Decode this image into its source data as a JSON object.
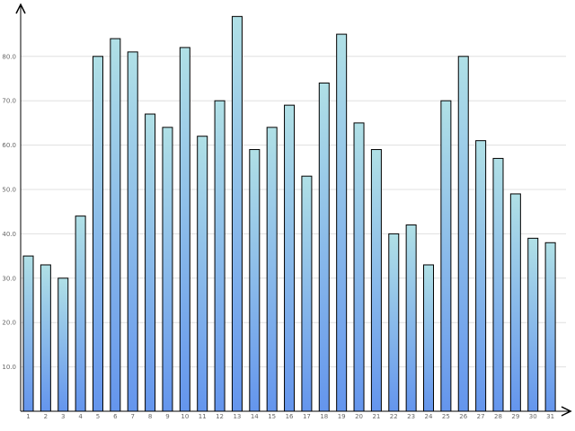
{
  "chart_data": {
    "type": "bar",
    "title": "",
    "xlabel": "",
    "ylabel": "",
    "categories": [
      "1",
      "2",
      "3",
      "4",
      "5",
      "6",
      "7",
      "8",
      "9",
      "10",
      "11",
      "12",
      "13",
      "14",
      "15",
      "16",
      "17",
      "18",
      "19",
      "20",
      "21",
      "22",
      "23",
      "24",
      "25",
      "26",
      "27",
      "28",
      "29",
      "30",
      "31"
    ],
    "values": [
      35,
      33,
      30,
      44,
      80,
      84,
      81,
      67,
      64,
      82,
      62,
      70,
      89,
      59,
      64,
      69,
      53,
      74,
      85,
      65,
      59,
      40,
      42,
      33,
      70,
      80,
      61,
      57,
      49,
      39,
      38
    ],
    "ylim": [
      0,
      90
    ],
    "yticks": [
      "10.0",
      "20.0",
      "30.0",
      "40.0",
      "50.0",
      "60.0",
      "70.0",
      "80.0"
    ],
    "ytick_values": [
      10,
      20,
      30,
      40,
      50,
      60,
      70,
      80
    ],
    "grid": true,
    "legend": "none",
    "colors": {
      "bar_top": "#b0e0e6",
      "bar_bottom": "#6495ed",
      "bar_stroke": "#000000",
      "grid": "#e0e0e0",
      "axis": "#000000",
      "label": "#666666"
    }
  }
}
